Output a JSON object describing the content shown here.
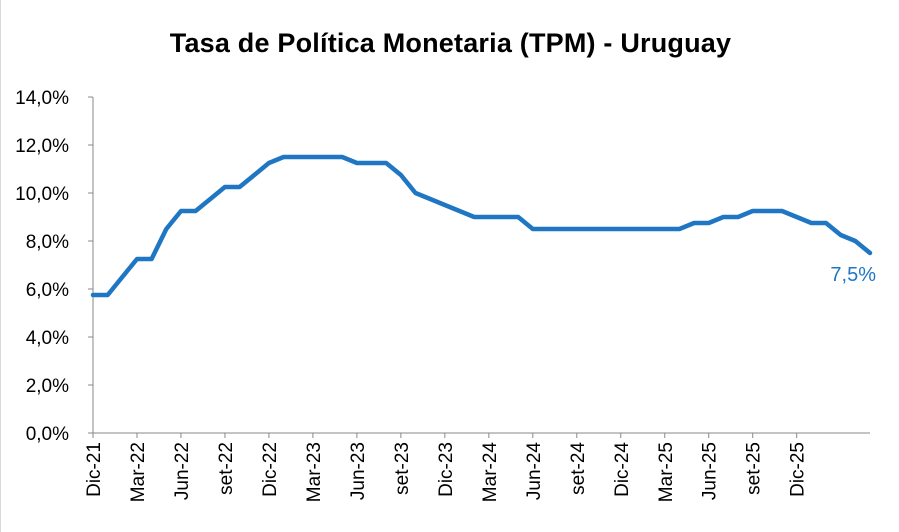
{
  "chart_data": {
    "type": "line",
    "title": "Tasa de Política Monetaria (TPM) - Uruguay",
    "xlabel": "",
    "ylabel": "",
    "ylim": [
      0,
      14
    ],
    "yticks": [
      "0,0%",
      "2,0%",
      "4,0%",
      "6,0%",
      "8,0%",
      "10,0%",
      "12,0%",
      "14,0%"
    ],
    "xticks": [
      "Dic-21",
      "Mar-22",
      "Jun-22",
      "set-22",
      "Dic-22",
      "Mar-23",
      "Jun-23",
      "set-23",
      "Dic-23",
      "Mar-24",
      "Jun-24",
      "set-24",
      "Dic-24",
      "Mar-25",
      "Jun-25",
      "set-25",
      "Dic-25"
    ],
    "series": [
      {
        "name": "TPM",
        "color": "#1f77c4",
        "values": [
          5.75,
          5.75,
          6.5,
          7.25,
          7.25,
          8.5,
          9.25,
          9.25,
          9.75,
          10.25,
          10.25,
          10.75,
          11.25,
          11.5,
          11.5,
          11.5,
          11.5,
          11.5,
          11.25,
          11.25,
          11.25,
          10.75,
          10.0,
          9.75,
          9.5,
          9.25,
          9.0,
          9.0,
          9.0,
          9.0,
          8.5,
          8.5,
          8.5,
          8.5,
          8.5,
          8.5,
          8.5,
          8.5,
          8.5,
          8.5,
          8.5,
          8.75,
          8.75,
          9.0,
          9.0,
          9.25,
          9.25,
          9.25,
          9.0,
          8.75,
          8.75,
          8.25,
          8.0,
          7.5
        ]
      }
    ],
    "annotation": {
      "text": "7,5%",
      "color": "#1f77c4"
    }
  }
}
